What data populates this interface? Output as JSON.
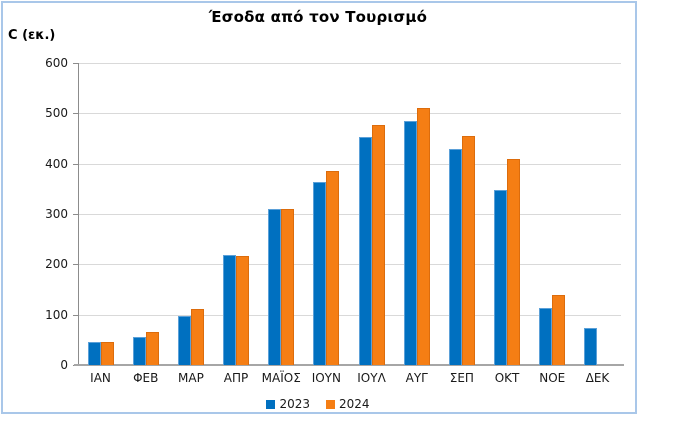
{
  "window": {
    "background": "#FFFFFF",
    "border_color": "#A9C7E9"
  },
  "chart_data": {
    "type": "bar",
    "title": "Έσοδα από τον Τουρισμό",
    "ylabel": "C (εκ.)",
    "xlabel": "",
    "categories": [
      "ΙΑΝ",
      "ΦΕΒ",
      "ΜΑΡ",
      "ΑΠΡ",
      "ΜΑΪΟΣ",
      "ΙΟΥΝ",
      "ΙΟΥΛ",
      "ΑΥΓ",
      "ΣΕΠ",
      "ΟΚΤ",
      "ΝΟΕ",
      "ΔΕΚ"
    ],
    "series": [
      {
        "name": "2023",
        "color": "#0070C0",
        "border_color": "#5BA0D8",
        "values": [
          45,
          56,
          98,
          218,
          311,
          363,
          454,
          484,
          430,
          348,
          113,
          74
        ]
      },
      {
        "name": "2024",
        "color": "#F57E14",
        "border_color": "#DC6C0C",
        "values": [
          46,
          65,
          112,
          216,
          310,
          386,
          476,
          511,
          456,
          409,
          139,
          null
        ]
      }
    ],
    "ylim": [
      0,
      600
    ],
    "ytick_step": 100,
    "ytick_labels": [
      "0",
      "100",
      "200",
      "300",
      "400",
      "500",
      "600"
    ],
    "grid": true,
    "gridline_color": "#D9D9D9",
    "axis_color": "#A6A6A6",
    "legend_position": "bottom"
  }
}
